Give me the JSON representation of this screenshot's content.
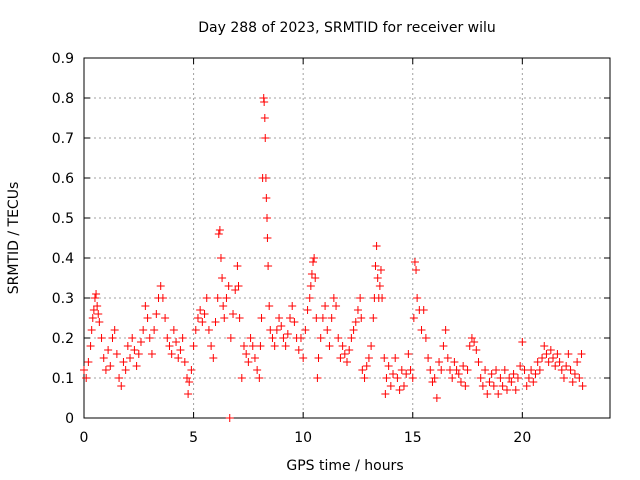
{
  "chart_data": {
    "type": "scatter",
    "title": "Day 288 of 2023, SRMTID for receiver wilu",
    "xlabel": "GPS time / hours",
    "ylabel": "SRMTID / TECUs",
    "xlim": [
      0,
      24
    ],
    "ylim": [
      0,
      0.9
    ],
    "xticks": [
      0,
      5,
      10,
      15,
      20
    ],
    "xtick_labels": [
      "0",
      "5",
      "10",
      "15",
      "20"
    ],
    "yticks": [
      0,
      0.1,
      0.2,
      0.3,
      0.4,
      0.5,
      0.6,
      0.7,
      0.8,
      0.9
    ],
    "ytick_labels": [
      "0",
      "0.1",
      "0.2",
      "0.3",
      "0.4",
      "0.5",
      "0.6",
      "0.7",
      "0.8",
      "0.9"
    ],
    "grid": true,
    "marker": "+",
    "color": "#ff0000",
    "series": [
      {
        "name": "SRMTID",
        "points": [
          [
            0.0,
            0.12
          ],
          [
            0.1,
            0.1
          ],
          [
            0.2,
            0.14
          ],
          [
            0.3,
            0.18
          ],
          [
            0.35,
            0.22
          ],
          [
            0.4,
            0.25
          ],
          [
            0.45,
            0.27
          ],
          [
            0.5,
            0.3
          ],
          [
            0.55,
            0.31
          ],
          [
            0.6,
            0.28
          ],
          [
            0.65,
            0.26
          ],
          [
            0.7,
            0.24
          ],
          [
            0.8,
            0.2
          ],
          [
            0.9,
            0.15
          ],
          [
            1.0,
            0.12
          ],
          [
            1.1,
            0.17
          ],
          [
            1.2,
            0.13
          ],
          [
            1.3,
            0.2
          ],
          [
            1.4,
            0.22
          ],
          [
            1.5,
            0.16
          ],
          [
            1.6,
            0.1
          ],
          [
            1.7,
            0.08
          ],
          [
            1.8,
            0.14
          ],
          [
            1.9,
            0.12
          ],
          [
            2.0,
            0.18
          ],
          [
            2.1,
            0.15
          ],
          [
            2.2,
            0.2
          ],
          [
            2.3,
            0.17
          ],
          [
            2.4,
            0.13
          ],
          [
            2.5,
            0.16
          ],
          [
            2.6,
            0.19
          ],
          [
            2.7,
            0.22
          ],
          [
            2.8,
            0.28
          ],
          [
            2.9,
            0.25
          ],
          [
            3.0,
            0.2
          ],
          [
            3.1,
            0.16
          ],
          [
            3.2,
            0.22
          ],
          [
            3.3,
            0.26
          ],
          [
            3.4,
            0.3
          ],
          [
            3.5,
            0.33
          ],
          [
            3.6,
            0.3
          ],
          [
            3.7,
            0.25
          ],
          [
            3.8,
            0.2
          ],
          [
            3.9,
            0.18
          ],
          [
            4.0,
            0.16
          ],
          [
            4.1,
            0.22
          ],
          [
            4.2,
            0.19
          ],
          [
            4.3,
            0.15
          ],
          [
            4.4,
            0.17
          ],
          [
            4.5,
            0.2
          ],
          [
            4.6,
            0.14
          ],
          [
            4.7,
            0.1
          ],
          [
            4.75,
            0.06
          ],
          [
            4.8,
            0.09
          ],
          [
            4.9,
            0.12
          ],
          [
            5.0,
            0.18
          ],
          [
            5.1,
            0.22
          ],
          [
            5.2,
            0.25
          ],
          [
            5.3,
            0.27
          ],
          [
            5.4,
            0.24
          ],
          [
            5.5,
            0.26
          ],
          [
            5.6,
            0.3
          ],
          [
            5.7,
            0.22
          ],
          [
            5.8,
            0.18
          ],
          [
            5.9,
            0.15
          ],
          [
            6.0,
            0.24
          ],
          [
            6.1,
            0.3
          ],
          [
            6.15,
            0.46
          ],
          [
            6.2,
            0.47
          ],
          [
            6.25,
            0.4
          ],
          [
            6.3,
            0.35
          ],
          [
            6.35,
            0.28
          ],
          [
            6.4,
            0.25
          ],
          [
            6.5,
            0.3
          ],
          [
            6.6,
            0.33
          ],
          [
            6.65,
            0.0
          ],
          [
            6.7,
            0.2
          ],
          [
            6.8,
            0.26
          ],
          [
            6.9,
            0.32
          ],
          [
            7.0,
            0.38
          ],
          [
            7.05,
            0.33
          ],
          [
            7.1,
            0.25
          ],
          [
            7.2,
            0.1
          ],
          [
            7.3,
            0.18
          ],
          [
            7.4,
            0.16
          ],
          [
            7.5,
            0.14
          ],
          [
            7.6,
            0.2
          ],
          [
            7.7,
            0.18
          ],
          [
            7.8,
            0.15
          ],
          [
            7.9,
            0.12
          ],
          [
            8.0,
            0.1
          ],
          [
            8.05,
            0.18
          ],
          [
            8.1,
            0.25
          ],
          [
            8.15,
            0.6
          ],
          [
            8.2,
            0.8
          ],
          [
            8.22,
            0.79
          ],
          [
            8.25,
            0.75
          ],
          [
            8.27,
            0.7
          ],
          [
            8.3,
            0.6
          ],
          [
            8.32,
            0.55
          ],
          [
            8.35,
            0.5
          ],
          [
            8.37,
            0.45
          ],
          [
            8.4,
            0.38
          ],
          [
            8.45,
            0.28
          ],
          [
            8.5,
            0.22
          ],
          [
            8.6,
            0.2
          ],
          [
            8.7,
            0.18
          ],
          [
            8.8,
            0.22
          ],
          [
            8.9,
            0.25
          ],
          [
            9.0,
            0.23
          ],
          [
            9.1,
            0.2
          ],
          [
            9.2,
            0.18
          ],
          [
            9.3,
            0.21
          ],
          [
            9.4,
            0.25
          ],
          [
            9.5,
            0.28
          ],
          [
            9.6,
            0.24
          ],
          [
            9.7,
            0.2
          ],
          [
            9.8,
            0.17
          ],
          [
            9.9,
            0.2
          ],
          [
            10.0,
            0.15
          ],
          [
            10.1,
            0.22
          ],
          [
            10.2,
            0.27
          ],
          [
            10.3,
            0.3
          ],
          [
            10.35,
            0.33
          ],
          [
            10.4,
            0.36
          ],
          [
            10.45,
            0.39
          ],
          [
            10.5,
            0.4
          ],
          [
            10.55,
            0.35
          ],
          [
            10.6,
            0.25
          ],
          [
            10.65,
            0.1
          ],
          [
            10.7,
            0.15
          ],
          [
            10.8,
            0.2
          ],
          [
            10.9,
            0.25
          ],
          [
            11.0,
            0.28
          ],
          [
            11.1,
            0.22
          ],
          [
            11.2,
            0.18
          ],
          [
            11.3,
            0.25
          ],
          [
            11.4,
            0.3
          ],
          [
            11.5,
            0.28
          ],
          [
            11.6,
            0.2
          ],
          [
            11.7,
            0.15
          ],
          [
            11.8,
            0.18
          ],
          [
            11.9,
            0.16
          ],
          [
            12.0,
            0.14
          ],
          [
            12.1,
            0.17
          ],
          [
            12.2,
            0.2
          ],
          [
            12.3,
            0.22
          ],
          [
            12.4,
            0.24
          ],
          [
            12.5,
            0.27
          ],
          [
            12.6,
            0.3
          ],
          [
            12.65,
            0.25
          ],
          [
            12.7,
            0.12
          ],
          [
            12.8,
            0.1
          ],
          [
            12.9,
            0.13
          ],
          [
            13.0,
            0.15
          ],
          [
            13.1,
            0.18
          ],
          [
            13.2,
            0.25
          ],
          [
            13.25,
            0.3
          ],
          [
            13.3,
            0.38
          ],
          [
            13.35,
            0.43
          ],
          [
            13.4,
            0.35
          ],
          [
            13.45,
            0.3
          ],
          [
            13.5,
            0.33
          ],
          [
            13.55,
            0.37
          ],
          [
            13.6,
            0.3
          ],
          [
            13.7,
            0.15
          ],
          [
            13.75,
            0.06
          ],
          [
            13.8,
            0.1
          ],
          [
            13.9,
            0.13
          ],
          [
            14.0,
            0.08
          ],
          [
            14.1,
            0.11
          ],
          [
            14.2,
            0.15
          ],
          [
            14.3,
            0.1
          ],
          [
            14.4,
            0.07
          ],
          [
            14.5,
            0.12
          ],
          [
            14.6,
            0.08
          ],
          [
            14.7,
            0.11
          ],
          [
            14.8,
            0.16
          ],
          [
            14.9,
            0.12
          ],
          [
            15.0,
            0.1
          ],
          [
            15.05,
            0.25
          ],
          [
            15.1,
            0.39
          ],
          [
            15.15,
            0.37
          ],
          [
            15.2,
            0.3
          ],
          [
            15.3,
            0.27
          ],
          [
            15.4,
            0.22
          ],
          [
            15.5,
            0.27
          ],
          [
            15.6,
            0.2
          ],
          [
            15.7,
            0.15
          ],
          [
            15.8,
            0.12
          ],
          [
            15.9,
            0.09
          ],
          [
            16.0,
            0.1
          ],
          [
            16.1,
            0.05
          ],
          [
            16.2,
            0.14
          ],
          [
            16.3,
            0.12
          ],
          [
            16.4,
            0.18
          ],
          [
            16.5,
            0.22
          ],
          [
            16.6,
            0.15
          ],
          [
            16.7,
            0.12
          ],
          [
            16.8,
            0.1
          ],
          [
            16.9,
            0.14
          ],
          [
            17.0,
            0.12
          ],
          [
            17.1,
            0.11
          ],
          [
            17.2,
            0.09
          ],
          [
            17.3,
            0.13
          ],
          [
            17.4,
            0.08
          ],
          [
            17.5,
            0.12
          ],
          [
            17.6,
            0.18
          ],
          [
            17.7,
            0.2
          ],
          [
            17.8,
            0.19
          ],
          [
            17.9,
            0.17
          ],
          [
            18.0,
            0.14
          ],
          [
            18.1,
            0.1
          ],
          [
            18.2,
            0.08
          ],
          [
            18.3,
            0.12
          ],
          [
            18.4,
            0.06
          ],
          [
            18.5,
            0.09
          ],
          [
            18.6,
            0.11
          ],
          [
            18.7,
            0.08
          ],
          [
            18.8,
            0.12
          ],
          [
            18.9,
            0.06
          ],
          [
            19.0,
            0.1
          ],
          [
            19.1,
            0.08
          ],
          [
            19.2,
            0.12
          ],
          [
            19.3,
            0.07
          ],
          [
            19.4,
            0.1
          ],
          [
            19.5,
            0.09
          ],
          [
            19.6,
            0.11
          ],
          [
            19.7,
            0.07
          ],
          [
            19.8,
            0.1
          ],
          [
            19.9,
            0.13
          ],
          [
            20.0,
            0.19
          ],
          [
            20.1,
            0.12
          ],
          [
            20.2,
            0.08
          ],
          [
            20.3,
            0.1
          ],
          [
            20.4,
            0.12
          ],
          [
            20.5,
            0.09
          ],
          [
            20.6,
            0.11
          ],
          [
            20.7,
            0.14
          ],
          [
            20.8,
            0.12
          ],
          [
            20.9,
            0.15
          ],
          [
            21.0,
            0.18
          ],
          [
            21.1,
            0.16
          ],
          [
            21.2,
            0.14
          ],
          [
            21.3,
            0.17
          ],
          [
            21.4,
            0.15
          ],
          [
            21.5,
            0.13
          ],
          [
            21.6,
            0.16
          ],
          [
            21.7,
            0.14
          ],
          [
            21.8,
            0.12
          ],
          [
            21.9,
            0.1
          ],
          [
            22.0,
            0.13
          ],
          [
            22.1,
            0.16
          ],
          [
            22.2,
            0.12
          ],
          [
            22.3,
            0.09
          ],
          [
            22.4,
            0.11
          ],
          [
            22.5,
            0.14
          ],
          [
            22.6,
            0.1
          ],
          [
            22.7,
            0.16
          ],
          [
            22.75,
            0.08
          ]
        ]
      }
    ]
  }
}
